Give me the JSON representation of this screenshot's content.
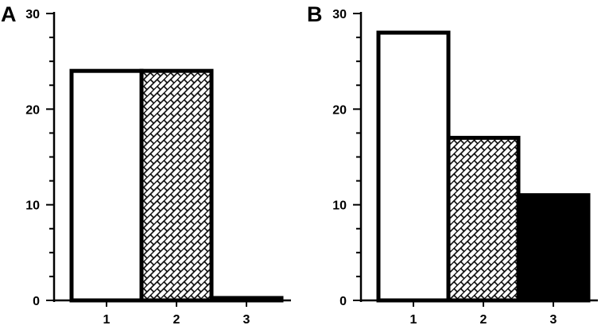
{
  "chart_data": [
    {
      "panel_label": "A",
      "type": "bar",
      "categories": [
        "1",
        "2",
        "3"
      ],
      "values": [
        24,
        24,
        0.25
      ],
      "fills": [
        "white",
        "hatch",
        "black"
      ],
      "ylim": [
        0,
        30
      ],
      "y_major_ticks": [
        0,
        10,
        20,
        30
      ],
      "y_minor_step": 2.5,
      "grid": false,
      "legend": "none"
    },
    {
      "panel_label": "B",
      "type": "bar",
      "categories": [
        "1",
        "2",
        "3"
      ],
      "values": [
        28,
        17,
        11
      ],
      "fills": [
        "white",
        "hatch",
        "black"
      ],
      "ylim": [
        0,
        30
      ],
      "y_major_ticks": [
        0,
        10,
        20,
        30
      ],
      "y_minor_step": 2.5,
      "grid": false,
      "legend": "none"
    }
  ]
}
